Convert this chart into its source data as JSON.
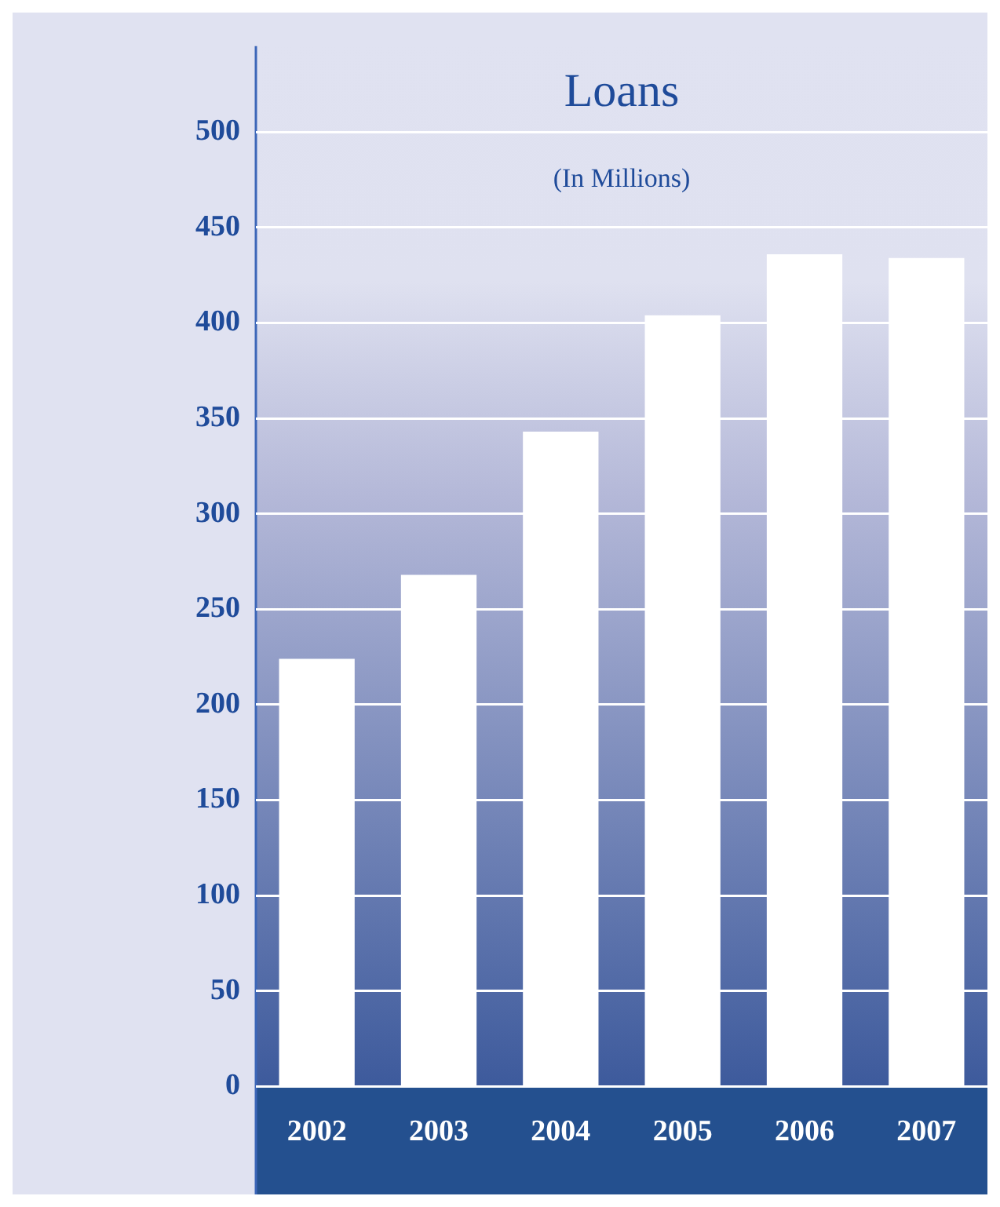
{
  "chart_data": {
    "type": "bar",
    "title": "Loans",
    "subtitle": "(In Millions)",
    "categories": [
      "2002",
      "2003",
      "2004",
      "2005",
      "2006",
      "2007"
    ],
    "values": [
      224,
      268,
      343,
      404,
      436,
      434
    ],
    "color": "#ffffff",
    "ylim": [
      0,
      545
    ],
    "yticks": [
      0,
      50,
      100,
      150,
      200,
      250,
      300,
      350,
      400,
      450,
      500
    ],
    "grid": "y"
  }
}
